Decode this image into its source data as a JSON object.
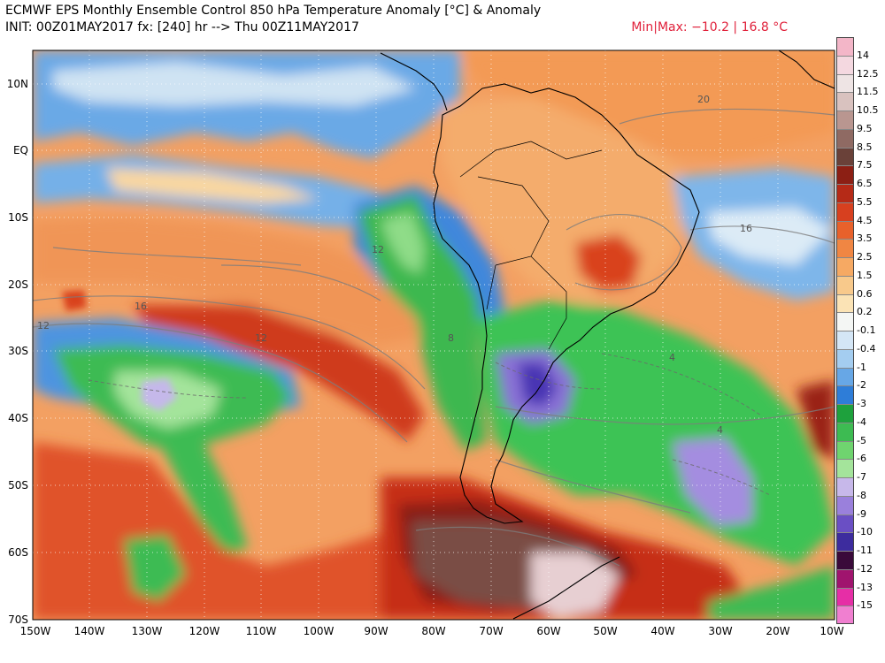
{
  "header": {
    "title": "ECMWF EPS Monthly Ensemble Control 850 hPa Temperature Anomaly [°C] & Anomaly",
    "init": "INIT: 00Z01MAY2017 fx: [240] hr --> Thu 00Z11MAY2017",
    "minmax": "Min|Max: −10.2 | 16.8 °C"
  },
  "map": {
    "lat_labels": [
      "10N",
      "EQ",
      "10S",
      "20S",
      "30S",
      "40S",
      "50S",
      "60S",
      "70S"
    ],
    "lon_labels": [
      "150W",
      "140W",
      "130W",
      "120W",
      "110W",
      "100W",
      "90W",
      "80W",
      "70W",
      "60W",
      "50W",
      "40W",
      "30W",
      "20W",
      "10W"
    ],
    "contour_labels": [
      "20",
      "16",
      "12",
      "16",
      "12",
      "12",
      "8",
      "4",
      "4"
    ]
  },
  "colorbar": {
    "levels": [
      {
        "label": "14",
        "color": "#f3b6c8"
      },
      {
        "label": "12.5",
        "color": "#f4d8e0"
      },
      {
        "label": "11.5",
        "color": "#eee4e4"
      },
      {
        "label": "10.5",
        "color": "#d9c2bf"
      },
      {
        "label": "9.5",
        "color": "#b99690"
      },
      {
        "label": "8.5",
        "color": "#8f6a63"
      },
      {
        "label": "7.5",
        "color": "#6a4139"
      },
      {
        "label": "6.5",
        "color": "#8c1f14"
      },
      {
        "label": "5.5",
        "color": "#b52a17"
      },
      {
        "label": "4.5",
        "color": "#d7401f"
      },
      {
        "label": "3.5",
        "color": "#e8612b"
      },
      {
        "label": "2.5",
        "color": "#f08643"
      },
      {
        "label": "1.5",
        "color": "#f6a963"
      },
      {
        "label": "0.6",
        "color": "#f8c98b"
      },
      {
        "label": "0.2",
        "color": "#fbe3b5"
      },
      {
        "label": "-0.1",
        "color": "#f4f6f4"
      },
      {
        "label": "-0.4",
        "color": "#d4e6f6"
      },
      {
        "label": "-1",
        "color": "#a4cdf0"
      },
      {
        "label": "-2",
        "color": "#67a7e6"
      },
      {
        "label": "-3",
        "color": "#2e7dd8"
      },
      {
        "label": "-4",
        "color": "#1ea13d"
      },
      {
        "label": "-5",
        "color": "#3dbb52"
      },
      {
        "label": "-6",
        "color": "#6fd46f"
      },
      {
        "label": "-7",
        "color": "#a4e49b"
      },
      {
        "label": "-8",
        "color": "#c7b8ea"
      },
      {
        "label": "-9",
        "color": "#9a80dc"
      },
      {
        "label": "-10",
        "color": "#6a4fc4"
      },
      {
        "label": "-11",
        "color": "#3d2c9e"
      },
      {
        "label": "-12",
        "color": "#3a0a3a"
      },
      {
        "label": "-13",
        "color": "#a0146e"
      },
      {
        "label": "-15",
        "color": "#e62ea6"
      },
      {
        "label": "",
        "color": "#f07fd0"
      }
    ]
  }
}
